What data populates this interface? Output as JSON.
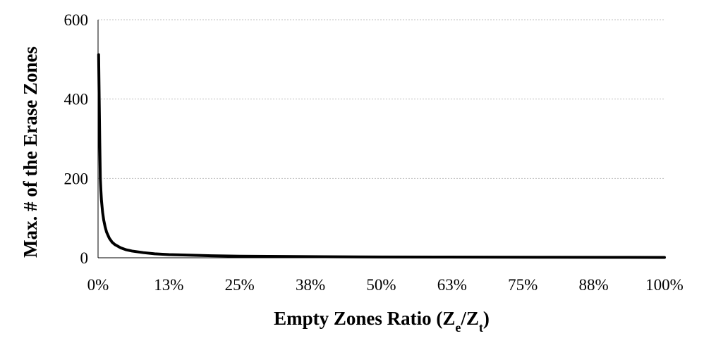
{
  "chart_data": {
    "type": "line",
    "title": "",
    "xlabel": {
      "prefix": "Empty Zones Ratio (Z",
      "sub1": "e",
      "mid": "/Z",
      "sub2": "t",
      "suffix": ")"
    },
    "ylabel": "Max. # of the Erase Zones",
    "xlim": [
      0,
      100
    ],
    "ylim": [
      0,
      600
    ],
    "x_tick_values": [
      0,
      12.5,
      25,
      37.5,
      50,
      62.5,
      75,
      87.5,
      100
    ],
    "x_tick_labels": [
      "0%",
      "13%",
      "25%",
      "38%",
      "50%",
      "63%",
      "75%",
      "88%",
      "100%"
    ],
    "y_tick_values": [
      0,
      200,
      400,
      600
    ],
    "y_tick_labels": [
      "0",
      "200",
      "400",
      "600"
    ],
    "grid": {
      "horizontal": true,
      "vertical": false
    },
    "legend": "none",
    "colors": {
      "line": "#000000",
      "grid": "#bfbfbf",
      "axis": "#000000"
    },
    "series": [
      {
        "x": [
          0.1,
          0.2,
          0.3,
          0.4,
          0.5,
          0.6,
          0.8,
          1.0,
          1.25,
          1.5,
          2.0,
          2.5,
          3.0,
          4.0,
          5.0,
          6.0,
          8.0,
          10.0,
          12.5,
          15.0,
          20.0,
          25.0,
          30.0,
          40.0,
          50.0,
          60.0,
          70.0,
          80.0,
          90.0,
          100.0
        ],
        "y": [
          512,
          400,
          290,
          200,
          170,
          145,
          115,
          95,
          78,
          65,
          49,
          39,
          33,
          25,
          20,
          17,
          13,
          10,
          8,
          7,
          5,
          4,
          3.5,
          2.6,
          2.1,
          1.7,
          1.5,
          1.3,
          1.1,
          1.0
        ]
      }
    ]
  }
}
